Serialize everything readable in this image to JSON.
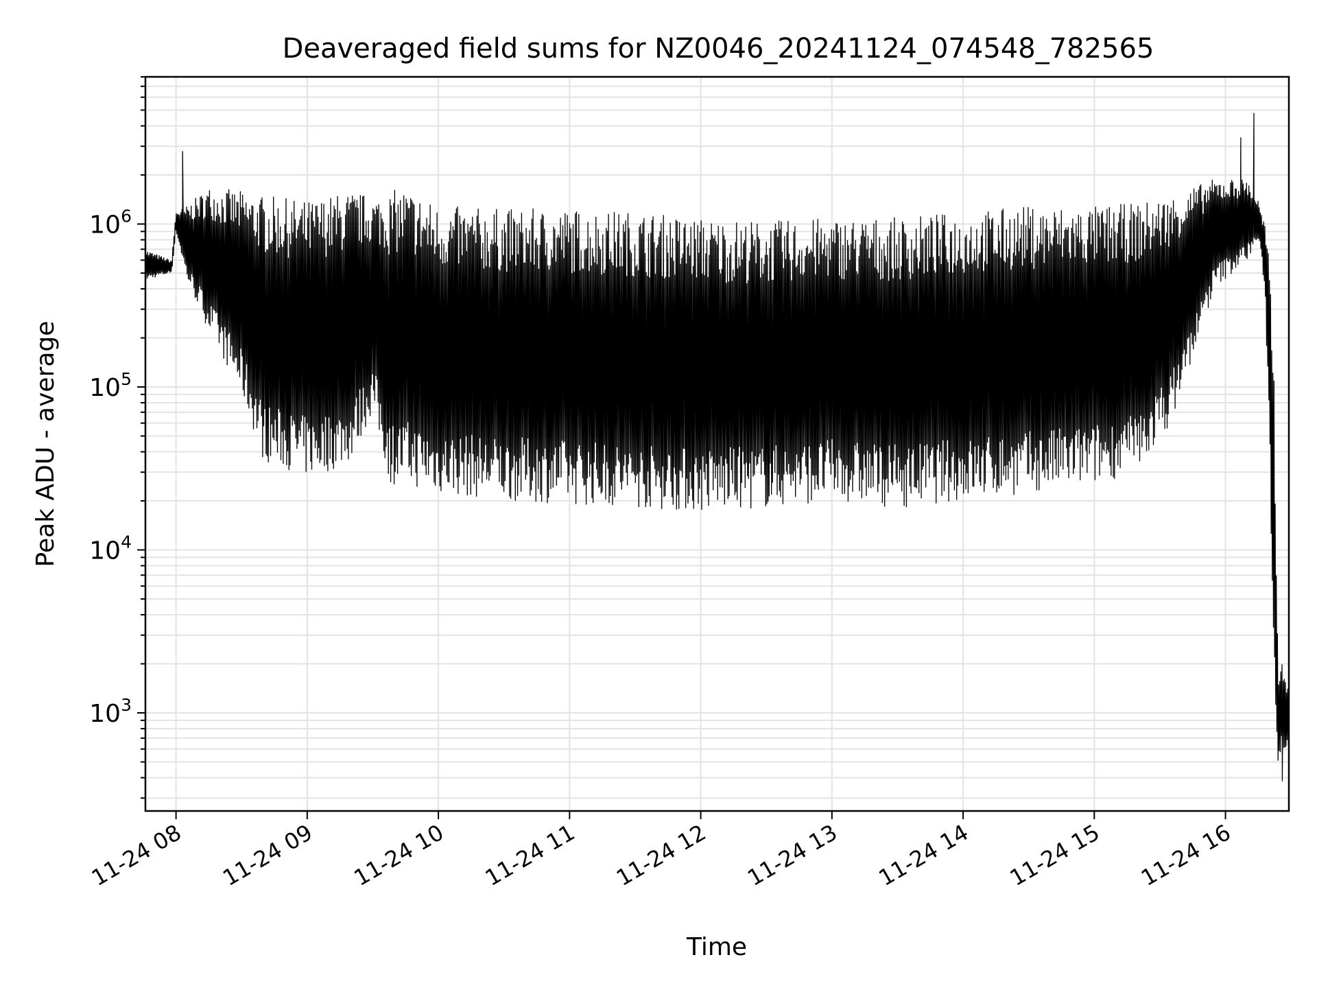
{
  "chart_data": {
    "type": "line",
    "title": "Deaveraged field sums for NZ0046_20241124_074548_782565",
    "xlabel": "Time",
    "ylabel": "Peak ADU - average",
    "xscale": "time",
    "yscale": "log",
    "x_range": [
      "2024-11-24 07:46",
      "2024-11-24 16:29"
    ],
    "ylim": [
      250,
      8000000
    ],
    "grid": true,
    "line_color": "#000000",
    "x_ticks": [
      {
        "value": "2024-11-24 08:00",
        "label": "11-24 08"
      },
      {
        "value": "2024-11-24 09:00",
        "label": "11-24 09"
      },
      {
        "value": "2024-11-24 10:00",
        "label": "11-24 10"
      },
      {
        "value": "2024-11-24 11:00",
        "label": "11-24 11"
      },
      {
        "value": "2024-11-24 12:00",
        "label": "11-24 12"
      },
      {
        "value": "2024-11-24 13:00",
        "label": "11-24 13"
      },
      {
        "value": "2024-11-24 14:00",
        "label": "11-24 14"
      },
      {
        "value": "2024-11-24 15:00",
        "label": "11-24 15"
      },
      {
        "value": "2024-11-24 16:00",
        "label": "11-24 16"
      }
    ],
    "y_ticks": [
      {
        "value": 1000,
        "base": "10",
        "exp": "3"
      },
      {
        "value": 10000,
        "base": "10",
        "exp": "4"
      },
      {
        "value": 100000,
        "base": "10",
        "exp": "5"
      },
      {
        "value": 1000000,
        "base": "10",
        "exp": "6"
      }
    ],
    "series": [
      {
        "envelope": {
          "x": [
            "2024-11-24 07:46",
            "2024-11-24 07:58",
            "2024-11-24 08:00",
            "2024-11-24 08:05",
            "2024-11-24 08:15",
            "2024-11-24 08:30",
            "2024-11-24 08:40",
            "2024-11-24 09:00",
            "2024-11-24 09:10",
            "2024-11-24 09:20",
            "2024-11-24 09:30",
            "2024-11-24 09:38",
            "2024-11-24 09:45",
            "2024-11-24 10:00",
            "2024-11-24 10:30",
            "2024-11-24 11:00",
            "2024-11-24 11:30",
            "2024-11-24 12:00",
            "2024-11-24 12:30",
            "2024-11-24 13:00",
            "2024-11-24 13:30",
            "2024-11-24 14:00",
            "2024-11-24 14:30",
            "2024-11-24 15:00",
            "2024-11-24 15:20",
            "2024-11-24 15:35",
            "2024-11-24 15:45",
            "2024-11-24 15:55",
            "2024-11-24 16:10",
            "2024-11-24 16:15",
            "2024-11-24 16:18",
            "2024-11-24 16:20",
            "2024-11-24 16:22",
            "2024-11-24 16:24",
            "2024-11-24 16:26",
            "2024-11-24 16:29"
          ],
          "high": [
            700000,
            600000,
            1200000,
            1300000,
            1700000,
            1600000,
            1500000,
            1400000,
            1500000,
            1600000,
            1500000,
            1600000,
            1700000,
            1300000,
            1250000,
            1250000,
            1200000,
            1100000,
            1050000,
            1100000,
            1100000,
            1200000,
            1300000,
            1300000,
            1350000,
            1500000,
            1700000,
            1900000,
            1900000,
            1400000,
            1000000,
            600000,
            200000,
            2000,
            2000,
            1500
          ],
          "low": [
            450000,
            500000,
            900000,
            450000,
            220000,
            90000,
            35000,
            28000,
            30000,
            35000,
            70000,
            25000,
            25000,
            22000,
            20000,
            19000,
            18000,
            17000,
            18000,
            20000,
            18000,
            20000,
            22000,
            25000,
            30000,
            60000,
            150000,
            400000,
            600000,
            800000,
            400000,
            50000,
            2000,
            500,
            600,
            600
          ]
        },
        "spikes": [
          {
            "x": "2024-11-24 08:03",
            "value": 2800000
          },
          {
            "x": "2024-11-24 16:07",
            "value": 3400000
          },
          {
            "x": "2024-11-24 16:13",
            "value": 4800000
          },
          {
            "x": "2024-11-24 16:26",
            "value": 380
          }
        ]
      }
    ]
  }
}
